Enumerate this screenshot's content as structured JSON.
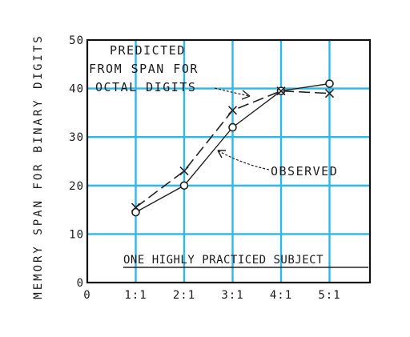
{
  "chart_data": {
    "type": "line",
    "title": "",
    "ylabel": "MEMORY SPAN FOR BINARY DIGITS",
    "xlabel": "",
    "ylim": [
      0,
      50
    ],
    "y_ticks": [
      "0",
      "10",
      "20",
      "30",
      "40",
      "50"
    ],
    "x_ticks": [
      "0",
      "1:1",
      "2:1",
      "3:1",
      "4:1",
      "5:1"
    ],
    "categories": [
      "1:1",
      "2:1",
      "3:1",
      "4:1",
      "5:1"
    ],
    "grid": true,
    "series": [
      {
        "name": "OBSERVED",
        "marker": "circle",
        "style": "solid",
        "values": [
          14.5,
          20,
          32,
          39.5,
          41
        ]
      },
      {
        "name": "PREDICTED FROM SPAN FOR OCTAL DIGITS",
        "marker": "x",
        "style": "dashed",
        "values": [
          15.5,
          23,
          35.5,
          39.5,
          39
        ]
      }
    ],
    "annotations": {
      "predicted": [
        "PREDICTED",
        "FROM SPAN FOR",
        "OCTAL DIGITS"
      ],
      "observed": "OBSERVED",
      "subject": "ONE HIGHLY PRACTICED SUBJECT"
    }
  }
}
